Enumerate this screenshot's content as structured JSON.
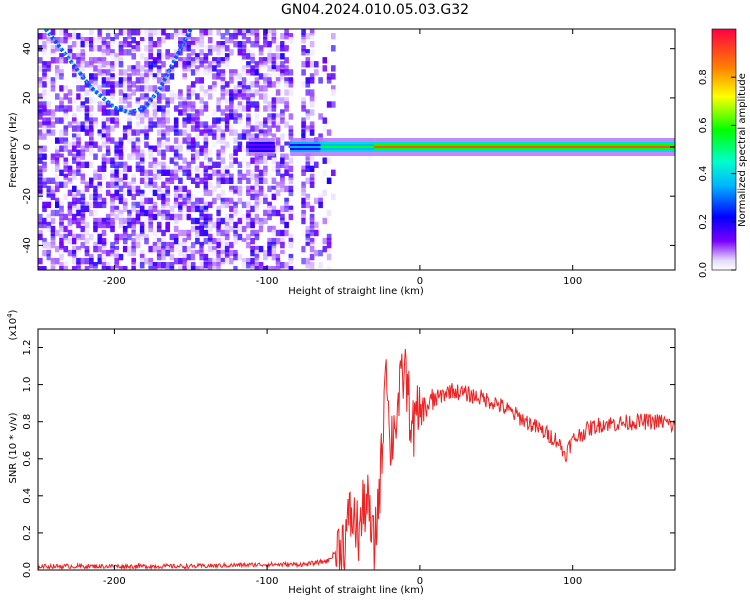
{
  "title": "GN04.2024.010.05.03.G32",
  "chart_data": [
    {
      "type": "heatmap",
      "xlabel": "Height of straight line (km)",
      "ylabel": "Frequency (Hz)",
      "xlim": [
        -250,
        167
      ],
      "ylim": [
        -50,
        48
      ],
      "xticks": [
        -200,
        -100,
        0,
        100
      ],
      "yticks": [
        -40,
        -20,
        0,
        20,
        40
      ],
      "colorbar": {
        "label": "Normalized spectral amplitude",
        "ticks": [
          0.0,
          0.2,
          0.4,
          0.6,
          0.8
        ],
        "range": [
          0,
          1
        ],
        "colormap": [
          "#ffffff",
          "#d9c8ff",
          "#6600ff",
          "#0000ff",
          "#00ffff",
          "#00ff00",
          "#ffff00",
          "#ff8000",
          "#ff0033"
        ]
      },
      "features": {
        "noise_region_x": [
          -250,
          -55
        ],
        "noise_amplitude_range": [
          0.0,
          0.2
        ],
        "gap_x": -80,
        "arc_points": [
          [
            -245,
            48
          ],
          [
            -230,
            36
          ],
          [
            -215,
            24
          ],
          [
            -200,
            16
          ],
          [
            -190,
            14
          ],
          [
            -180,
            16
          ],
          [
            -170,
            24
          ],
          [
            -160,
            36
          ],
          [
            -150,
            48
          ]
        ],
        "arc_amplitude": 0.25,
        "line_frequency_hz": 0,
        "line_segments": [
          {
            "x": [
              -112,
              -95
            ],
            "amplitude": 0.2
          },
          {
            "x": [
              -85,
              -65
            ],
            "amplitude": 0.35
          },
          {
            "x": [
              -65,
              -30
            ],
            "amplitude": 0.55
          },
          {
            "x": [
              -30,
              167
            ],
            "amplitude": 0.9
          }
        ]
      }
    },
    {
      "type": "line",
      "xlabel": "Height of straight line (km)",
      "ylabel": "SNR (10 * v/v)",
      "ylabel_scale": "(x10",
      "ylabel_scale_exp": "4",
      "ylabel_scale_close": ")",
      "xlim": [
        -250,
        167
      ],
      "ylim": [
        0,
        1.3
      ],
      "xticks": [
        -200,
        -100,
        0,
        100
      ],
      "yticks": [
        "0.0",
        "0.2",
        "0.4",
        "0.6",
        "0.8",
        "1.0",
        "1.2"
      ],
      "color": "#ee2222",
      "series": [
        {
          "x": [
            -250,
            -200,
            -150,
            -100,
            -75,
            -60,
            -50,
            -45,
            -40,
            -35,
            -30,
            -25,
            -22,
            -20,
            -15,
            -10,
            -5,
            0,
            10,
            20,
            30,
            40,
            50,
            60,
            70,
            80,
            90,
            95,
            100,
            110,
            120,
            130,
            140,
            150,
            160,
            167
          ],
          "values": [
            0.02,
            0.02,
            0.02,
            0.03,
            0.03,
            0.05,
            0.15,
            0.3,
            0.2,
            0.4,
            0.1,
            0.6,
            1.25,
            0.65,
            0.85,
            1.1,
            0.75,
            0.85,
            0.92,
            0.97,
            0.95,
            0.93,
            0.9,
            0.85,
            0.8,
            0.75,
            0.7,
            0.62,
            0.7,
            0.76,
            0.79,
            0.79,
            0.8,
            0.8,
            0.8,
            0.77
          ]
        }
      ]
    }
  ]
}
